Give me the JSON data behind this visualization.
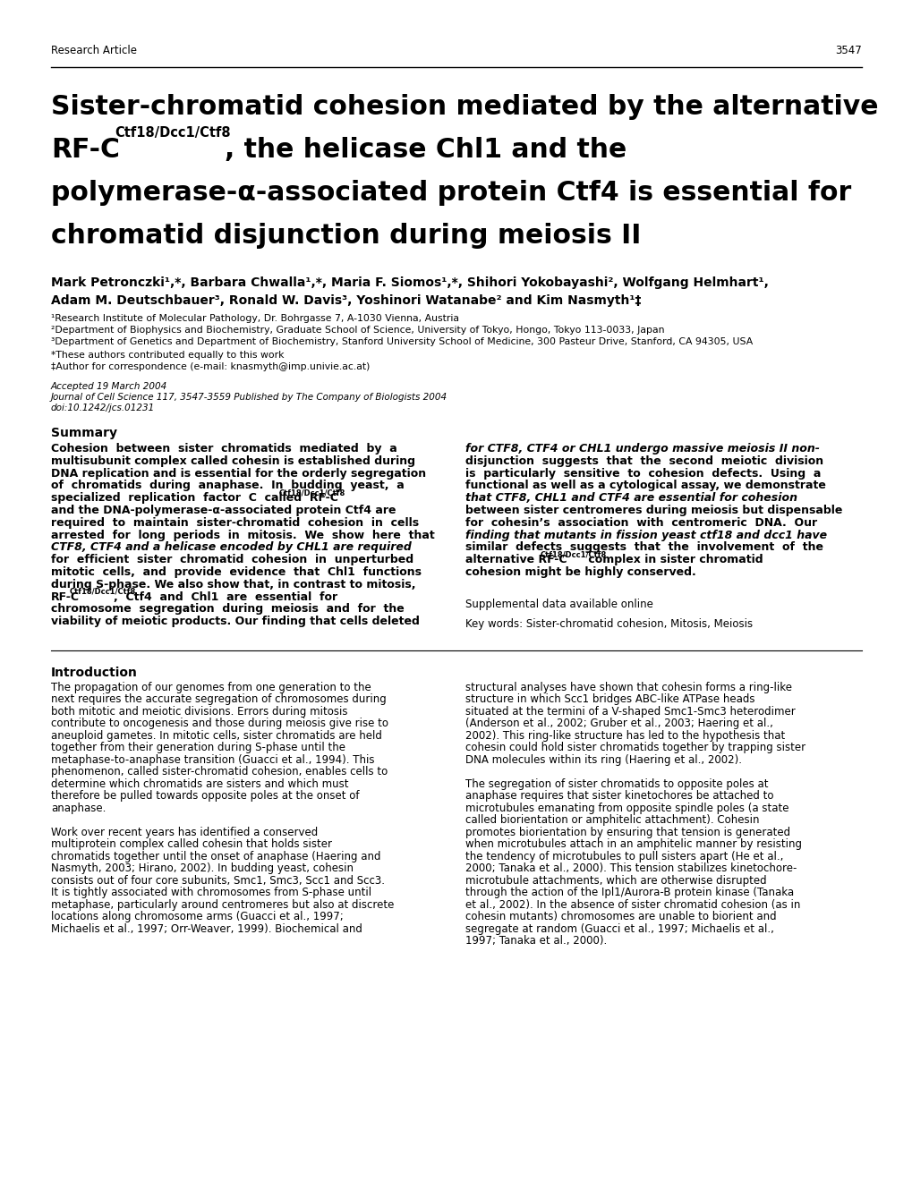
{
  "bg_color": "#ffffff",
  "page_number": "3547",
  "header_label": "Research Article",
  "title_line1": "Sister-chromatid cohesion mediated by the alternative",
  "title_line2_normal": "RF-C",
  "title_line2_super": "Ctf18/Dcc1/Ctf8",
  "title_line2_rest": ", the helicase Chl1 and the",
  "title_line3": "polymerase-α-associated protein Ctf4 is essential for",
  "title_line4": "chromatid disjunction during meiosis II",
  "authors_line1": "Mark Petronczki¹,*, Barbara Chwalla¹,*, Maria F. Siomos¹,*, Shihori Yokobayashi², Wolfgang Helmhart¹,",
  "authors_line2": "Adam M. Deutschbauer³, Ronald W. Davis³, Yoshinori Watanabe² and Kim Nasmyth¹‡",
  "affil1": "¹Research Institute of Molecular Pathology, Dr. Bohrgasse 7, A-1030 Vienna, Austria",
  "affil2": "²Department of Biophysics and Biochemistry, Graduate School of Science, University of Tokyo, Hongo, Tokyo 113-0033, Japan",
  "affil3": "³Department of Genetics and Department of Biochemistry, Stanford University School of Medicine, 300 Pasteur Drive, Stanford, CA 94305, USA",
  "note1": "*These authors contributed equally to this work",
  "note2": "‡Author for correspondence (e-mail: knasmyth@imp.univie.ac.at)",
  "accepted": "Accepted 19 March 2004",
  "journal": "Journal of Cell Science 117, 3547-3559 Published by The Company of Biologists 2004",
  "doi": "doi:10.1242/jcs.01231",
  "summary_heading": "Summary",
  "summary_left_lines": [
    "Cohesion  between  sister  chromatids  mediated  by  a",
    "multisubunit complex called cohesin is established during",
    "DNA replication and is essential for the orderly segregation",
    "of  chromatids  during  anaphase.  In  budding  yeast,  a",
    "specialized  replication  factor  C  called  RF-CCtf18/Dcc1/Ctf8",
    "and the DNA-polymerase-α-associated protein Ctf4 are",
    "required  to  maintain  sister-chromatid  cohesion  in  cells",
    "arrested  for  long  periods  in  mitosis.  We  show  here  that",
    "CTF8, CTF4 and a helicase encoded by CHL1 are required",
    "for  efficient  sister  chromatid  cohesion  in  unperturbed",
    "mitotic  cells,  and  provide  evidence  that  Chl1  functions",
    "during S-phase. We also show that, in contrast to mitosis,",
    "RF-CCtf18/Dcc1/Ctf8,  Ctf4  and  Chl1  are  essential  for",
    "chromosome  segregation  during  meiosis  and  for  the",
    "viability of meiotic products. Our finding that cells deleted"
  ],
  "summary_right_lines": [
    "for CTF8, CTF4 or CHL1 undergo massive meiosis II non-",
    "disjunction  suggests  that  the  second  meiotic  division",
    "is  particularly  sensitive  to  cohesion  defects.  Using  a",
    "functional as well as a cytological assay, we demonstrate",
    "that CTF8, CHL1 and CTF4 are essential for cohesion",
    "between sister centromeres during meiosis but dispensable",
    "for  cohesin’s  association  with  centromeric  DNA.  Our",
    "finding that mutants in fission yeast ctf18 and dcc1 have",
    "similar  defects  suggests  that  the  involvement  of  the",
    "alternative RF-CCtf18/Dcc1/Ctf8 complex in sister chromatid",
    "cohesion might be highly conserved."
  ],
  "supplemental": "Supplemental data available online",
  "keywords": "Key words: Sister-chromatid cohesion, Mitosis, Meiosis",
  "intro_heading": "Introduction",
  "intro_left_lines": [
    "The propagation of our genomes from one generation to the",
    "next requires the accurate segregation of chromosomes during",
    "both mitotic and meiotic divisions. Errors during mitosis",
    "contribute to oncogenesis and those during meiosis give rise to",
    "aneuploid gametes. In mitotic cells, sister chromatids are held",
    "together from their generation during S-phase until the",
    "metaphase-to-anaphase transition (Guacci et al., 1994). This",
    "phenomenon, called sister-chromatid cohesion, enables cells to",
    "determine which chromatids are sisters and which must",
    "therefore be pulled towards opposite poles at the onset of",
    "anaphase.",
    "",
    "Work over recent years has identified a conserved",
    "multiprotein complex called cohesin that holds sister",
    "chromatids together until the onset of anaphase (Haering and",
    "Nasmyth, 2003; Hirano, 2002). In budding yeast, cohesin",
    "consists out of four core subunits, Smc1, Smc3, Scc1 and Scc3.",
    "It is tightly associated with chromosomes from S-phase until",
    "metaphase, particularly around centromeres but also at discrete",
    "locations along chromosome arms (Guacci et al., 1997;",
    "Michaelis et al., 1997; Orr-Weaver, 1999). Biochemical and"
  ],
  "intro_right_lines": [
    "structural analyses have shown that cohesin forms a ring-like",
    "structure in which Scc1 bridges ABC-like ATPase heads",
    "situated at the termini of a V-shaped Smc1-Smc3 heterodimer",
    "(Anderson et al., 2002; Gruber et al., 2003; Haering et al.,",
    "2002). This ring-like structure has led to the hypothesis that",
    "cohesin could hold sister chromatids together by trapping sister",
    "DNA molecules within its ring (Haering et al., 2002).",
    "",
    "The segregation of sister chromatids to opposite poles at",
    "anaphase requires that sister kinetochores be attached to",
    "microtubules emanating from opposite spindle poles (a state",
    "called biorientation or amphitelic attachment). Cohesin",
    "promotes biorientation by ensuring that tension is generated",
    "when microtubules attach in an amphitelic manner by resisting",
    "the tendency of microtubules to pull sisters apart (He et al.,",
    "2000; Tanaka et al., 2000). This tension stabilizes kinetochore-",
    "microtubule attachments, which are otherwise disrupted",
    "through the action of the Ipl1/Aurora-B protein kinase (Tanaka",
    "et al., 2002). In the absence of sister chromatid cohesion (as in",
    "cohesin mutants) chromosomes are unable to biorient and",
    "segregate at random (Guacci et al., 1997; Michaelis et al.,",
    "1997; Tanaka et al., 2000)."
  ]
}
